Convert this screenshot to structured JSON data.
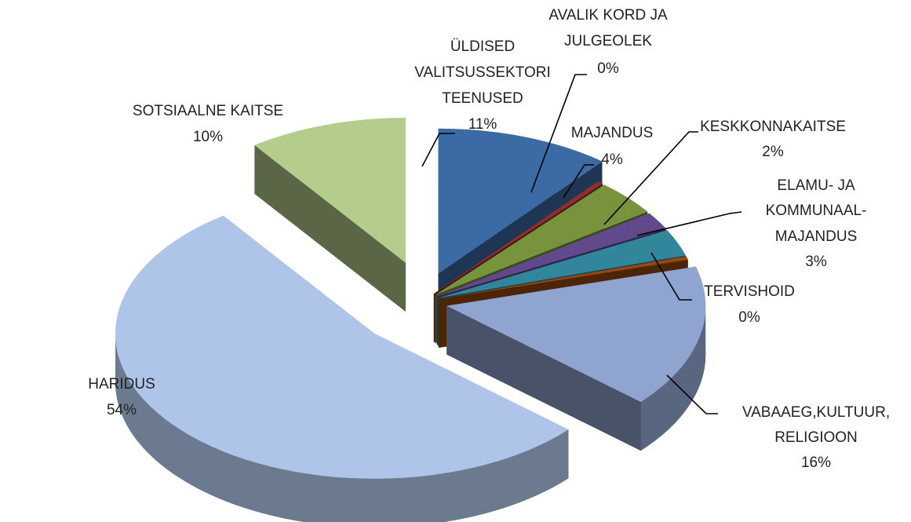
{
  "chart_data": {
    "type": "pie3d",
    "categories": [
      [
        "ÜLDISED",
        "VALITSUSSEKTORI",
        "TEENUSED"
      ],
      [
        "AVALIK KORD JA",
        "JULGEOLEK"
      ],
      [
        "MAJANDUS"
      ],
      [
        "KESKKONNAKAITSE"
      ],
      [
        "ELAMU- JA",
        "KOMMUNAAL-",
        "MAJANDUS"
      ],
      [
        "TERVISHOID"
      ],
      [
        "VABAAEG,KULTUUR,",
        "RELIGIOON"
      ],
      [
        "HARIDUS"
      ],
      [
        "SOTSIAALNE KAITSE"
      ]
    ],
    "values": [
      11,
      0.4,
      4,
      2,
      3,
      0.4,
      16,
      54,
      10
    ],
    "value_labels": [
      "11%",
      "0%",
      "4%",
      "2%",
      "3%",
      "0%",
      "16%",
      "54%",
      "10%"
    ],
    "colors": [
      "#3c6aa5",
      "#8e2f2f",
      "#77943d",
      "#604a8c",
      "#31869c",
      "#97490b",
      "#8fa4cf",
      "#aec4e8",
      "#b4cc8c"
    ]
  }
}
